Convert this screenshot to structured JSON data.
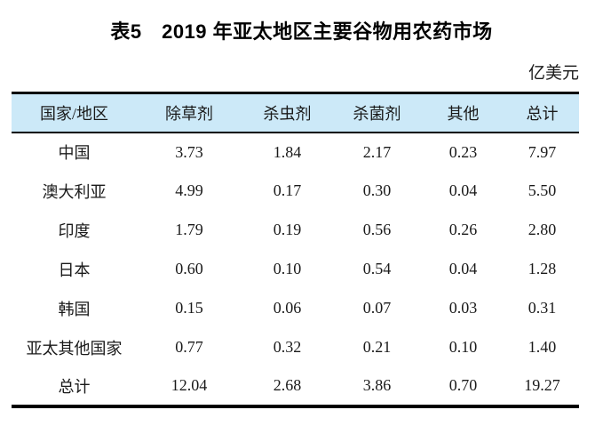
{
  "caption": "表5　2019 年亚太地区主要谷物用农药市场",
  "unit_label": "亿美元",
  "colors": {
    "header_bg": "#cce9f8",
    "rule": "#000000",
    "text": "#000000",
    "page_bg": "#ffffff"
  },
  "table": {
    "columns": [
      "国家/地区",
      "除草剂",
      "杀虫剂",
      "杀菌剂",
      "其他",
      "总计"
    ],
    "rows": [
      [
        "中国",
        "3.73",
        "1.84",
        "2.17",
        "0.23",
        "7.97"
      ],
      [
        "澳大利亚",
        "4.99",
        "0.17",
        "0.30",
        "0.04",
        "5.50"
      ],
      [
        "印度",
        "1.79",
        "0.19",
        "0.56",
        "0.26",
        "2.80"
      ],
      [
        "日本",
        "0.60",
        "0.10",
        "0.54",
        "0.04",
        "1.28"
      ],
      [
        "韩国",
        "0.15",
        "0.06",
        "0.07",
        "0.03",
        "0.31"
      ],
      [
        "亚太其他国家",
        "0.77",
        "0.32",
        "0.21",
        "0.10",
        "1.40"
      ],
      [
        "总计",
        "12.04",
        "2.68",
        "3.86",
        "0.70",
        "19.27"
      ]
    ]
  },
  "chart_data": {
    "type": "table",
    "title": "表5　2019 年亚太地区主要谷物用农药市场",
    "unit": "亿美元",
    "columns": [
      "国家/地区",
      "除草剂",
      "杀虫剂",
      "杀菌剂",
      "其他",
      "总计"
    ],
    "rows": [
      {
        "region": "中国",
        "herbicide": 3.73,
        "insecticide": 1.84,
        "fungicide": 2.17,
        "other": 0.23,
        "total": 7.97
      },
      {
        "region": "澳大利亚",
        "herbicide": 4.99,
        "insecticide": 0.17,
        "fungicide": 0.3,
        "other": 0.04,
        "total": 5.5
      },
      {
        "region": "印度",
        "herbicide": 1.79,
        "insecticide": 0.19,
        "fungicide": 0.56,
        "other": 0.26,
        "total": 2.8
      },
      {
        "region": "日本",
        "herbicide": 0.6,
        "insecticide": 0.1,
        "fungicide": 0.54,
        "other": 0.04,
        "total": 1.28
      },
      {
        "region": "韩国",
        "herbicide": 0.15,
        "insecticide": 0.06,
        "fungicide": 0.07,
        "other": 0.03,
        "total": 0.31
      },
      {
        "region": "亚太其他国家",
        "herbicide": 0.77,
        "insecticide": 0.32,
        "fungicide": 0.21,
        "other": 0.1,
        "total": 1.4
      },
      {
        "region": "总计",
        "herbicide": 12.04,
        "insecticide": 2.68,
        "fungicide": 3.86,
        "other": 0.7,
        "total": 19.27
      }
    ]
  }
}
